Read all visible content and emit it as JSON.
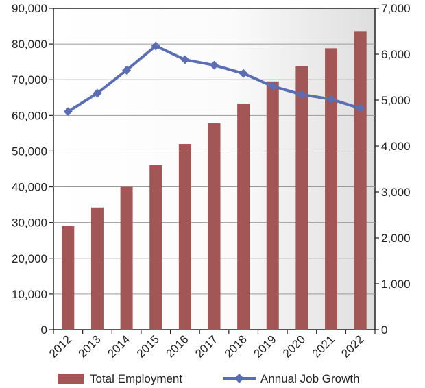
{
  "chart_data": {
    "type": "bar",
    "categories": [
      "2012",
      "2013",
      "2014",
      "2015",
      "2016",
      "2017",
      "2018",
      "2019",
      "2020",
      "2021",
      "2022"
    ],
    "series": [
      {
        "name": "Total Employment",
        "type": "bar",
        "axis": "left",
        "color": "#a35656",
        "values": [
          29000,
          34200,
          40000,
          46100,
          52000,
          57800,
          63300,
          69500,
          73700,
          78800,
          83600
        ]
      },
      {
        "name": "Annual Job Growth",
        "type": "line",
        "axis": "right",
        "color": "#5b6db3",
        "marker": "diamond",
        "values": [
          4750,
          5150,
          5650,
          6180,
          5880,
          5760,
          5580,
          5300,
          5120,
          5020,
          4820
        ]
      }
    ],
    "y_left": {
      "lim": [
        0,
        90000
      ],
      "ticks": [
        "0",
        "10,000",
        "20,000",
        "30,000",
        "40,000",
        "50,000",
        "60,000",
        "70,000",
        "80,000",
        "90,000"
      ]
    },
    "y_right": {
      "lim": [
        0,
        7000
      ],
      "ticks": [
        "0",
        "1,000",
        "2,000",
        "3,000",
        "4,000",
        "5,000",
        "6,000",
        "7,000"
      ]
    },
    "grid": true,
    "legend_position": "bottom",
    "title": "",
    "xlabel": "",
    "ylabel": ""
  }
}
